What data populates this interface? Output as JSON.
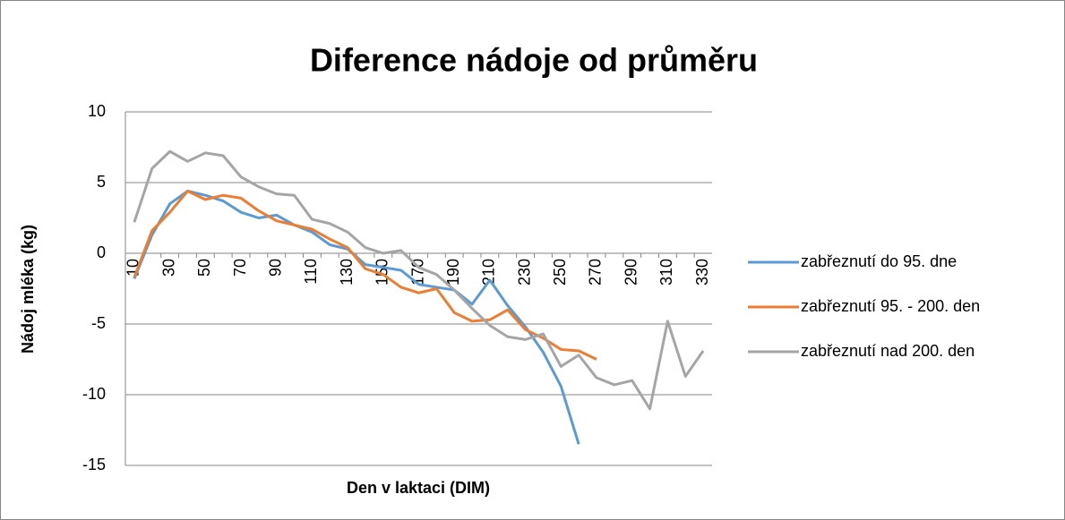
{
  "chart_data": {
    "type": "line",
    "title": "Diference nádoje od průměru",
    "x_label": "Den v laktaci (DIM)",
    "y_label": "Nádoj mléka (kg)",
    "categories": [
      10,
      null,
      30,
      null,
      50,
      null,
      70,
      null,
      90,
      null,
      110,
      null,
      130,
      null,
      150,
      null,
      170,
      null,
      190,
      null,
      210,
      null,
      230,
      null,
      250,
      null,
      270,
      null,
      290,
      null,
      310,
      null,
      330
    ],
    "ylim": [
      -15,
      10
    ],
    "yticks": [
      -15,
      -10,
      -5,
      0,
      5,
      10
    ],
    "grid": true,
    "legend": "right",
    "series": [
      {
        "name": "zabřeznutí do 95. dne",
        "color": "#5b9bd5",
        "values": [
          -1.8,
          1.3,
          3.5,
          4.4,
          4.1,
          3.7,
          2.9,
          2.5,
          2.7,
          2.0,
          1.5,
          0.6,
          0.3,
          -0.8,
          -1.0,
          -1.2,
          -2.2,
          -2.4,
          -2.6,
          -3.6,
          -1.9,
          -3.7,
          -5.2,
          -7.0,
          -9.4,
          -13.5,
          null,
          null,
          null,
          null,
          null,
          null,
          null
        ]
      },
      {
        "name": "zabřeznutí 95. - 200. den",
        "color": "#ed7d31",
        "values": [
          -1.7,
          1.6,
          2.9,
          4.4,
          3.8,
          4.1,
          3.9,
          3.0,
          2.3,
          2.0,
          1.7,
          1.0,
          0.4,
          -1.1,
          -1.5,
          -2.4,
          -2.8,
          -2.5,
          -4.2,
          -4.8,
          -4.7,
          -4.0,
          -5.4,
          -6.0,
          -6.8,
          -6.9,
          -7.5,
          null,
          null,
          null,
          null,
          null,
          null
        ]
      },
      {
        "name": "zabřeznutí nad 200. den",
        "color": "#a5a5a5",
        "values": [
          2.2,
          6.0,
          7.2,
          6.5,
          7.1,
          6.9,
          5.4,
          4.7,
          4.2,
          4.1,
          2.4,
          2.1,
          1.5,
          0.4,
          0.0,
          0.2,
          -1.0,
          -1.5,
          -2.6,
          -3.9,
          -5.1,
          -5.9,
          -6.1,
          -5.7,
          -8.0,
          -7.2,
          -8.8,
          -9.3,
          -9.0,
          -11.0,
          -4.8,
          -8.7,
          -6.9
        ]
      }
    ]
  }
}
